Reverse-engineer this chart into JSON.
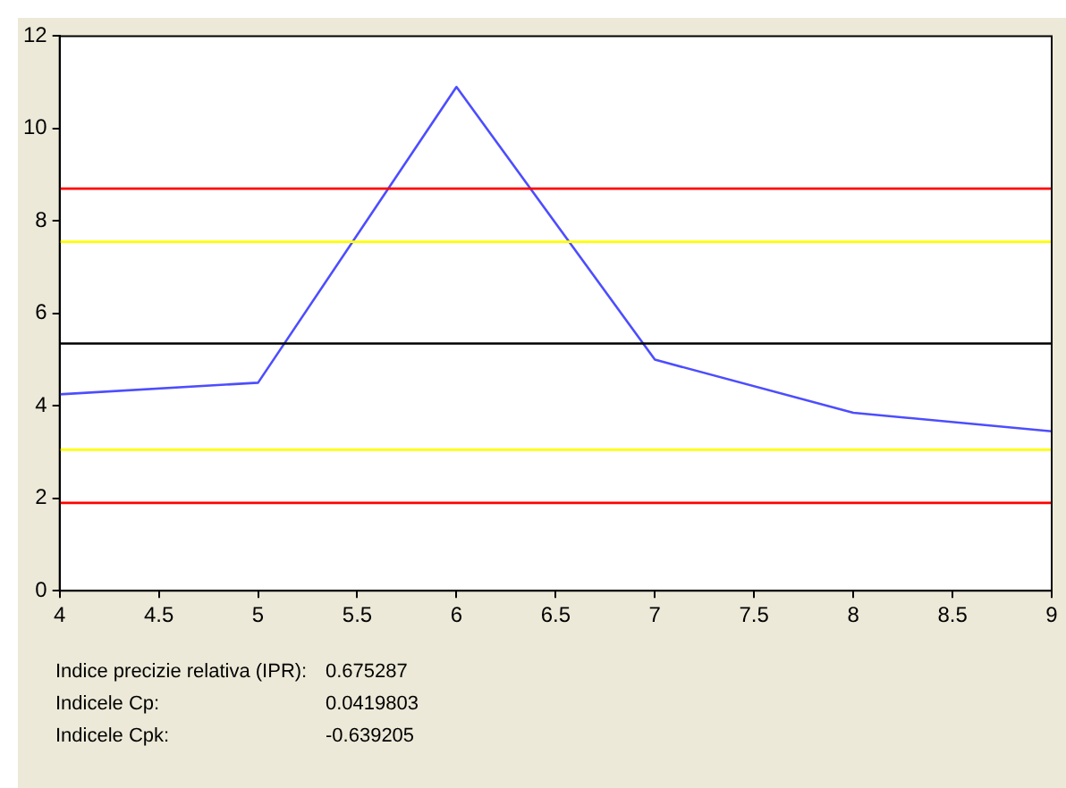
{
  "chart_data": {
    "type": "line",
    "x": [
      4,
      5,
      6,
      7,
      8,
      9
    ],
    "series": [
      {
        "color": "#4d4dff",
        "values": [
          4.25,
          4.5,
          10.9,
          5.0,
          3.85,
          3.45
        ]
      }
    ],
    "xlim": [
      4,
      9
    ],
    "xticks": [
      4,
      4.5,
      5,
      5.5,
      6,
      6.5,
      7,
      7.5,
      8,
      8.5,
      9
    ],
    "ylim": [
      0,
      12
    ],
    "yticks": [
      0,
      2,
      4,
      6,
      8,
      10,
      12
    ],
    "grid": false,
    "legend": false,
    "marker": "none",
    "line_style": "solid",
    "ref_lines": [
      {
        "axis": "y",
        "value": 8.7,
        "color": "#ff0000"
      },
      {
        "axis": "y",
        "value": 7.55,
        "color": "#ffff00"
      },
      {
        "axis": "y",
        "value": 5.35,
        "color": "#000000"
      },
      {
        "axis": "y",
        "value": 3.05,
        "color": "#ffff00"
      },
      {
        "axis": "y",
        "value": 1.9,
        "color": "#ff0000"
      }
    ],
    "annotations": [
      "Indice precizie relativa (IPR):",
      "0.675287",
      "Indicele Cp:",
      "0.0419803",
      "Indicele Cpk:",
      "-0.639205"
    ]
  }
}
